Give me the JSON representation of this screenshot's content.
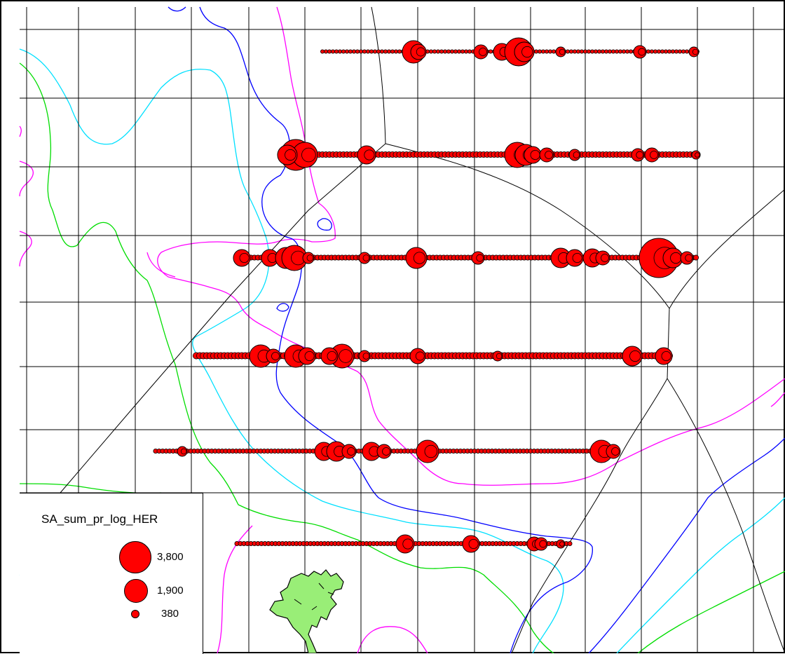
{
  "map": {
    "colors": {
      "grid": "#000000",
      "symbol_fill": "#ff0000",
      "symbol_outline": "#000000",
      "contour_green": "#00dd00",
      "contour_cyan": "#00e0ff",
      "contour_magenta": "#ff00ff",
      "contour_blue": "#0000ff",
      "land": "#99ee77"
    },
    "icons": [
      "proportional-circle-symbol",
      "land-polygon",
      "depth-contour-line"
    ]
  },
  "legend": {
    "title": "SA_sum_pr_log_HER",
    "items": [
      {
        "label": "3,800",
        "value": 3800
      },
      {
        "label": "1,900",
        "value": 1900
      },
      {
        "label": "380",
        "value": 380
      }
    ]
  }
}
